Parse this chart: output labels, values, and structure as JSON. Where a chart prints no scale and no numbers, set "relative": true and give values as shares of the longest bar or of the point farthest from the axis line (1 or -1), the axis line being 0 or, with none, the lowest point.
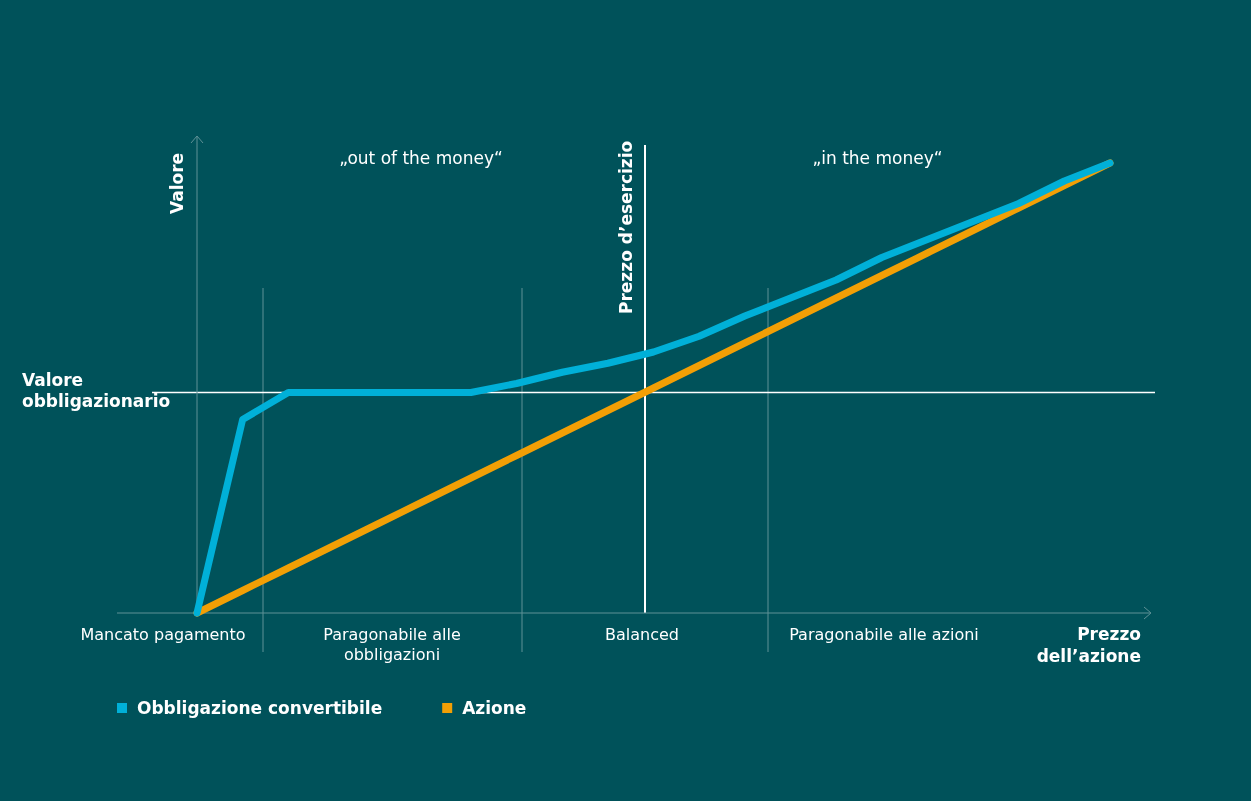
{
  "chart_data": {
    "type": "line",
    "relative": true,
    "xlabel": "Prezzo dell’azione",
    "ylabel": "Valore",
    "categories": [
      null,
      null,
      null,
      null,
      null,
      null,
      null,
      null,
      null,
      null,
      null,
      null,
      null,
      null,
      null,
      null,
      null,
      null,
      null,
      null,
      null
    ],
    "series": [
      {
        "name": "Obbligazione convertibile",
        "color": "#00b0d8",
        "values": [
          0,
          0.43,
          0.49,
          0.49,
          0.49,
          0.49,
          0.49,
          0.51,
          0.535,
          0.555,
          0.58,
          0.615,
          0.66,
          0.7,
          0.74,
          0.79,
          0.83,
          0.87,
          0.91,
          0.96,
          1
        ]
      },
      {
        "name": "Azione",
        "color": "#f29f05",
        "values": [
          0,
          0.05,
          0.1,
          0.15,
          0.2,
          0.25,
          0.3,
          0.35,
          0.4,
          0.45,
          0.5,
          0.55,
          0.6,
          0.65,
          0.7,
          0.75,
          0.8,
          0.85,
          0.9,
          0.95,
          1
        ]
      }
    ],
    "ref_lines": [
      {
        "axis": "y",
        "value": 0.49,
        "label": "Valore obbligazionario",
        "color": "#ffffff"
      }
    ],
    "annotations": [
      "„out of the money“",
      "„in the money“",
      "Prezzo d’esercizio",
      "Mancato pagamento",
      "Paragonabile alle obbligazioni",
      "Balanced",
      "Paragonabile alle azioni"
    ],
    "legend": "bottom left",
    "marker": "none",
    "line_style": "solid"
  }
}
